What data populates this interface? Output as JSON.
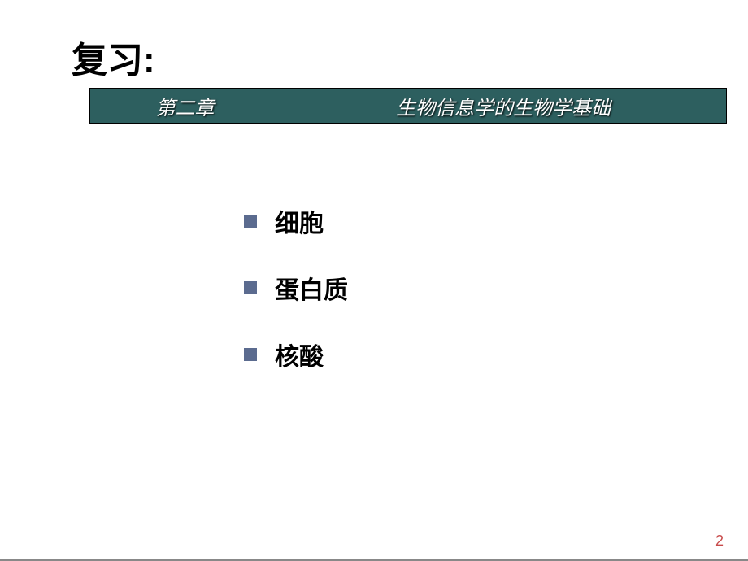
{
  "title": "复习:",
  "chapter": {
    "left": "第二章",
    "right": "生物信息学的生物学基础"
  },
  "bullets": [
    "细胞",
    "蛋白质",
    "核酸"
  ],
  "page_number": "2",
  "colors": {
    "chapter_bg": "#2d5f5f",
    "bullet_square": "#5b6b8f",
    "page_number": "#c84b4b"
  }
}
